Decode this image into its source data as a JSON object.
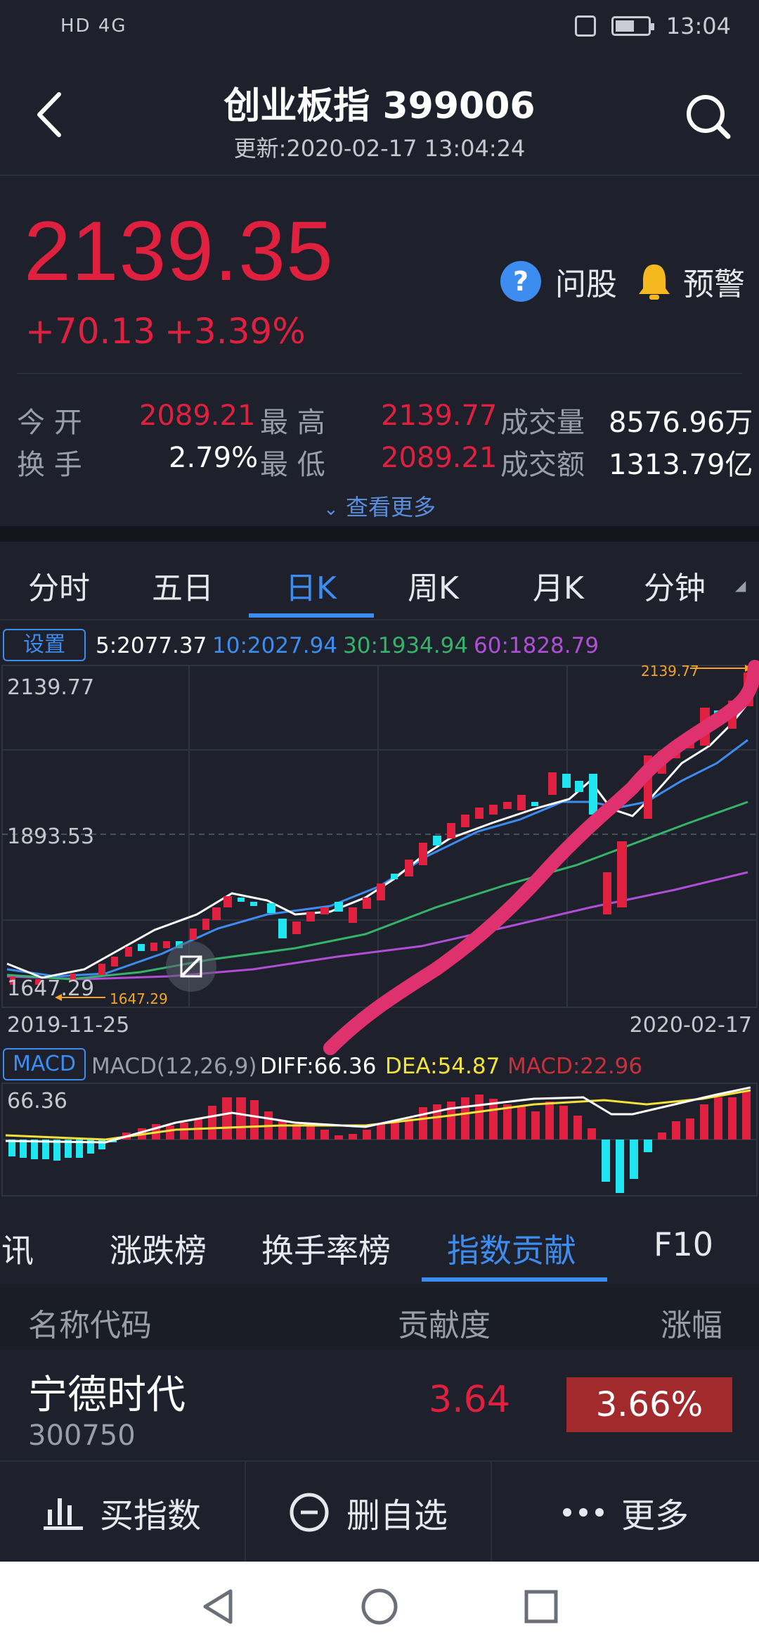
{
  "status_bar": {
    "left": "HD 4G",
    "time": "13:04"
  },
  "header": {
    "title": "创业板指 399006",
    "updated": "更新:2020-02-17 13:04:24"
  },
  "quote": {
    "price": "2139.35",
    "change": "+70.13",
    "change_pct": "+3.39%",
    "ask_label": "问股",
    "alert_label": "预警",
    "open_label": "今 开",
    "open": "2089.21",
    "high_label": "最 高",
    "high": "2139.77",
    "volume_label": "成交量",
    "volume": "8576.96万",
    "turnover_label": "换 手",
    "turnover": "2.79%",
    "low_label": "最 低",
    "low": "2089.21",
    "amount_label": "成交额",
    "amount": "1313.79亿",
    "more_label": "查看更多"
  },
  "period_tabs": [
    "分时",
    "五日",
    "日K",
    "周K",
    "月K",
    "分钟"
  ],
  "active_period": "日K",
  "kline": {
    "settings_label": "设置",
    "ma5": "5:2077.37",
    "ma10": "10:2027.94",
    "ma30": "30:1934.94",
    "ma60": "60:1828.79",
    "y_top": "2139.77",
    "y_mid": "1893.53",
    "y_bottom": "1647.29",
    "high_marker": "2139.77",
    "low_marker": "1647.29",
    "date_start": "2019-11-25",
    "date_end": "2020-02-17"
  },
  "macd": {
    "btn_label": "MACD",
    "params": "MACD(12,26,9)",
    "diff": "DIFF:66.36",
    "dea": "DEA:54.87",
    "macd": "MACD:22.96",
    "y_top": "66.36"
  },
  "colors": {
    "up": "#e0203f",
    "down": "#1ee5f0",
    "accent": "#3d8cf0",
    "ma5": "#ffffff",
    "ma10": "#3d8cf0",
    "ma30": "#35b36b",
    "ma60": "#b04fd6",
    "dea": "#f2e33a",
    "annotation": "#e0316f"
  },
  "rank_tabs": [
    "资讯",
    "涨跌榜",
    "换手率榜",
    "指数贡献",
    "F10"
  ],
  "active_rank_tab": "指数贡献",
  "table": {
    "headers": [
      "名称代码",
      "贡献度",
      "涨幅"
    ],
    "rows": [
      {
        "name": "宁德时代",
        "code": "300750",
        "contribution": "3.64",
        "pct": "3.66%"
      }
    ]
  },
  "bottom_bar": {
    "buy": "买指数",
    "remove": "删自选",
    "more": "更多"
  },
  "nav": {
    "back": "back-triangle",
    "home": "home-circle",
    "recent": "recent-square"
  }
}
